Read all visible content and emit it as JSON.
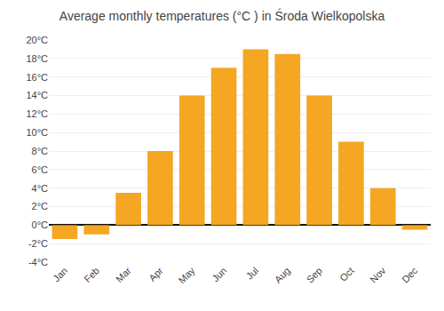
{
  "chart_data": {
    "type": "bar",
    "title": "Average monthly temperatures (°C ) in Środa Wielkopolska",
    "categories": [
      "Jan",
      "Feb",
      "Mar",
      "Apr",
      "May",
      "Jun",
      "Jul",
      "Aug",
      "Sep",
      "Oct",
      "Nov",
      "Dec"
    ],
    "values": [
      -1.5,
      -1.0,
      3.5,
      8.0,
      14.0,
      17.0,
      19.0,
      18.5,
      14.0,
      9.0,
      4.0,
      -0.5
    ],
    "color": "#F5A623",
    "ylim": [
      -4,
      20
    ],
    "yticks": [
      {
        "value": -4,
        "label": "-4°C"
      },
      {
        "value": -2,
        "label": "-2°C"
      },
      {
        "value": 0,
        "label": "0°C"
      },
      {
        "value": 2,
        "label": "2°C"
      },
      {
        "value": 4,
        "label": "4°C"
      },
      {
        "value": 6,
        "label": "6°C"
      },
      {
        "value": 8,
        "label": "8°C"
      },
      {
        "value": 10,
        "label": "10°C"
      },
      {
        "value": 12,
        "label": "12°C"
      },
      {
        "value": 14,
        "label": "14°C"
      },
      {
        "value": 16,
        "label": "16°C"
      },
      {
        "value": 18,
        "label": "18°C"
      },
      {
        "value": 20,
        "label": "20°C"
      }
    ],
    "grid": true
  }
}
